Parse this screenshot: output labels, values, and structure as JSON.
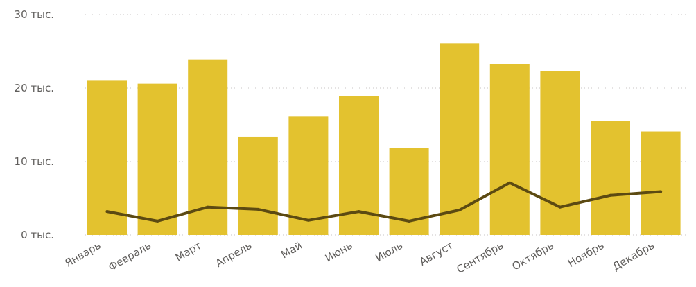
{
  "chart_data": {
    "type": "bar",
    "categories": [
      "Январь",
      "Февраль",
      "Март",
      "Апрель",
      "Май",
      "Июнь",
      "Июль",
      "Август",
      "Сентябрь",
      "Октябрь",
      "Ноябрь",
      "Декабрь"
    ],
    "series": [
      {
        "type": "bar",
        "color": "#E3C22F",
        "values": [
          21000,
          20600,
          23900,
          13400,
          16100,
          18900,
          11800,
          26100,
          23300,
          22300,
          15500,
          14100
        ]
      },
      {
        "type": "line",
        "color": "#5C4A12",
        "values": [
          3200,
          1900,
          3800,
          3500,
          2000,
          3200,
          1900,
          3400,
          7100,
          3800,
          5400,
          5900
        ]
      }
    ],
    "ylim": [
      0,
      30000
    ],
    "y_ticks": [
      0,
      10000,
      20000,
      30000
    ],
    "y_tick_labels": [
      "0 тыс.",
      "10 тыс.",
      "20 тыс.",
      "30 тыс."
    ],
    "grid": true,
    "title": "",
    "xlabel": "",
    "ylabel": ""
  }
}
